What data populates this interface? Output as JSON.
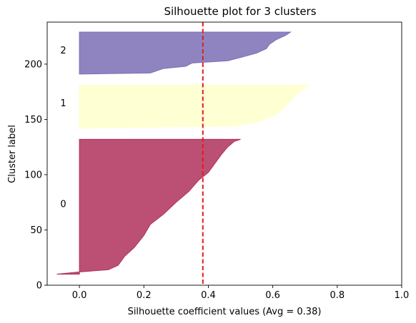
{
  "chart_data": {
    "type": "area",
    "title": "Silhouette plot for 3 clusters",
    "xlabel": "Silhouette coefficient values (Avg = 0.38)",
    "ylabel": "Cluster label",
    "xlim": [
      -0.1,
      1.0
    ],
    "ylim": [
      0,
      238
    ],
    "xticks": [
      0.0,
      0.2,
      0.4,
      0.6,
      0.8,
      1.0
    ],
    "xtick_labels": [
      "0.0",
      "0.2",
      "0.4",
      "0.6",
      "0.8",
      "1.0"
    ],
    "yticks": [
      0,
      50,
      100,
      150,
      200
    ],
    "ytick_labels": [
      "0",
      "50",
      "100",
      "150",
      "200"
    ],
    "grid": false,
    "average_silhouette": 0.383,
    "average_line_color": "#e41a1c",
    "clusters": [
      {
        "name": "0",
        "color": "#b0305c",
        "label_y": 74,
        "silhouette": [
          {
            "y": 10,
            "x": -0.07
          },
          {
            "y": 12,
            "x": 0.0
          },
          {
            "y": 14,
            "x": 0.09
          },
          {
            "y": 18,
            "x": 0.12
          },
          {
            "y": 26,
            "x": 0.14
          },
          {
            "y": 34,
            "x": 0.17
          },
          {
            "y": 45,
            "x": 0.2
          },
          {
            "y": 55,
            "x": 0.22
          },
          {
            "y": 64,
            "x": 0.26
          },
          {
            "y": 75,
            "x": 0.3
          },
          {
            "y": 85,
            "x": 0.34
          },
          {
            "y": 95,
            "x": 0.37
          },
          {
            "y": 102,
            "x": 0.4
          },
          {
            "y": 110,
            "x": 0.42
          },
          {
            "y": 118,
            "x": 0.44
          },
          {
            "y": 125,
            "x": 0.46
          },
          {
            "y": 130,
            "x": 0.48
          },
          {
            "y": 132,
            "x": 0.5
          }
        ]
      },
      {
        "name": "1",
        "color": "#ffffcc",
        "label_y": 165,
        "silhouette": [
          {
            "y": 142,
            "x": 0.0
          },
          {
            "y": 144,
            "x": 0.48
          },
          {
            "y": 148,
            "x": 0.56
          },
          {
            "y": 156,
            "x": 0.62
          },
          {
            "y": 165,
            "x": 0.65
          },
          {
            "y": 172,
            "x": 0.67
          },
          {
            "y": 178,
            "x": 0.7
          },
          {
            "y": 181,
            "x": 0.71
          }
        ]
      },
      {
        "name": "2",
        "color": "#7b6fb5",
        "label_y": 213,
        "silhouette": [
          {
            "y": 191,
            "x": 0.0
          },
          {
            "y": 192,
            "x": 0.22
          },
          {
            "y": 196,
            "x": 0.26
          },
          {
            "y": 198,
            "x": 0.33
          },
          {
            "y": 201,
            "x": 0.35
          },
          {
            "y": 203,
            "x": 0.46
          },
          {
            "y": 206,
            "x": 0.5
          },
          {
            "y": 210,
            "x": 0.55
          },
          {
            "y": 214,
            "x": 0.58
          },
          {
            "y": 218,
            "x": 0.59
          },
          {
            "y": 222,
            "x": 0.61
          },
          {
            "y": 226,
            "x": 0.64
          },
          {
            "y": 229,
            "x": 0.655
          }
        ]
      }
    ]
  }
}
